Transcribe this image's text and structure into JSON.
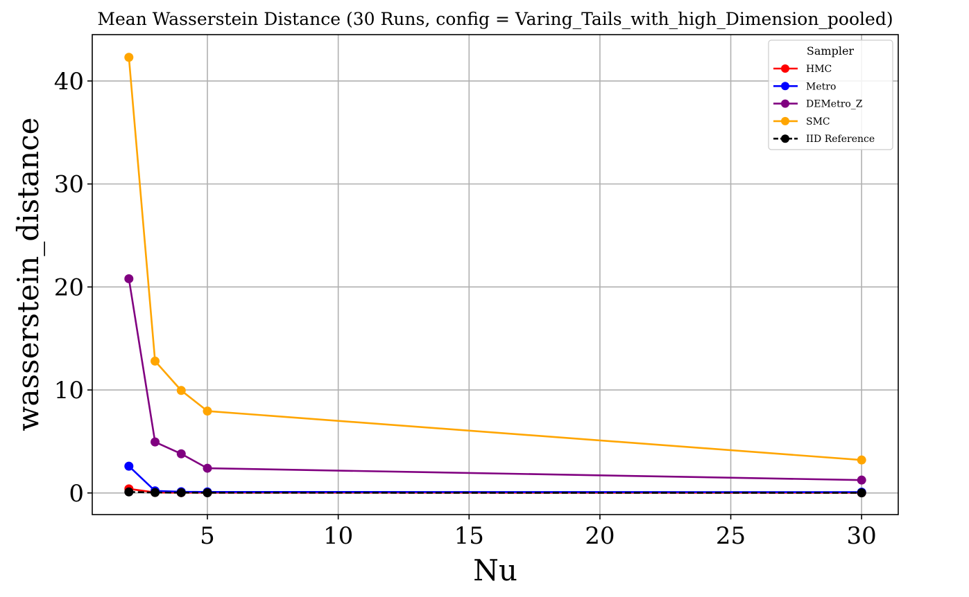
{
  "chart_data": {
    "type": "line",
    "title": "Mean Wasserstein Distance (30 Runs, config = Varing_Tails_with_high_Dimension_pooled)",
    "xlabel": "Nu",
    "ylabel": "wasserstein_distance",
    "xlim": [
      0.6,
      31.4
    ],
    "ylim": [
      -2.1,
      44.5
    ],
    "xticks": [
      5,
      10,
      15,
      20,
      25,
      30
    ],
    "yticks": [
      0,
      10,
      20,
      30,
      40
    ],
    "x": [
      2,
      3,
      4,
      5,
      30
    ],
    "grid": true,
    "legend": {
      "title": "Sampler",
      "placement": "top-right"
    },
    "series": [
      {
        "name": "HMC",
        "color": "#ff0000",
        "linestyle": "solid",
        "values": [
          0.4,
          0.05,
          0.03,
          0.03,
          0.02
        ]
      },
      {
        "name": "Metro",
        "color": "#0000ff",
        "linestyle": "solid",
        "values": [
          2.6,
          0.2,
          0.12,
          0.1,
          0.08
        ]
      },
      {
        "name": "DEMetro_Z",
        "color": "#800080",
        "linestyle": "solid",
        "values": [
          20.8,
          4.95,
          3.8,
          2.4,
          1.25
        ]
      },
      {
        "name": "SMC",
        "color": "#ffa500",
        "linestyle": "solid",
        "values": [
          42.3,
          12.8,
          9.95,
          7.95,
          3.2
        ]
      },
      {
        "name": "IID Reference",
        "color": "#000000",
        "linestyle": "dashed",
        "values": [
          0.1,
          0.04,
          0.03,
          0.02,
          0.01
        ]
      }
    ]
  }
}
